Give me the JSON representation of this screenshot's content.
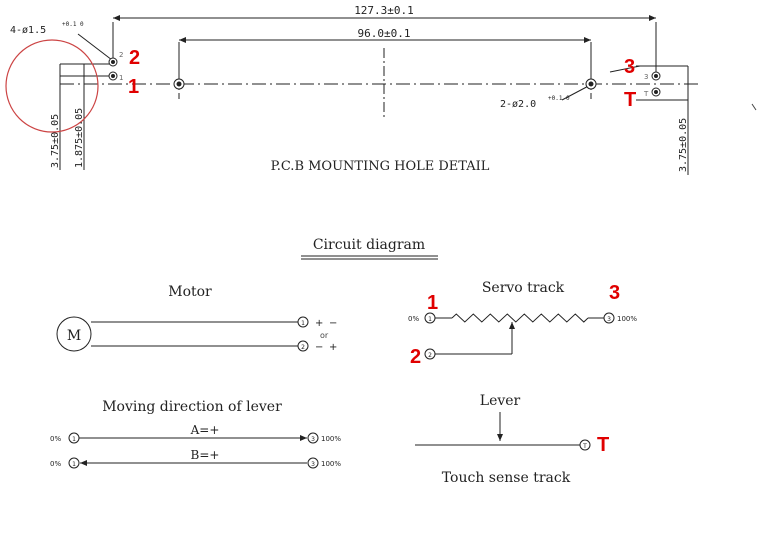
{
  "mounting": {
    "dim_overall": "127.3±0.1",
    "dim_inner": "96.0±0.1",
    "hole_small": "4-ø1.5",
    "hole_small_tol": "+0.1 0",
    "hole_large": "2-ø2.0",
    "hole_large_tol": "+0.1 0",
    "dim_left_a": "3.75±0.05",
    "dim_left_b": "1.875±0.05",
    "dim_right": "3.75±0.05",
    "title": "P.C.B MOUNTING HOLE DETAIL",
    "pin_small_left_top": "2",
    "pin_small_left_bot": "1",
    "pin_small_right_top": "3",
    "pin_small_right_bot": "T"
  },
  "annotations": {
    "left_top": "2",
    "left_bottom": "1",
    "right_top": "3",
    "right_bottom": "T",
    "servo_left": "1",
    "servo_right": "3",
    "servo_wiper": "2",
    "touch_end": "T",
    "color": "#e00000"
  },
  "circuit": {
    "title": "Circuit diagram",
    "motor_label": "Motor",
    "motor_symbol": "M",
    "plus": "+",
    "minus": "−",
    "or": "or",
    "servo_label": "Servo track",
    "pct0": "0%",
    "pct100": "100%",
    "lever_dir_label": "Moving direction of lever",
    "dir_a": "A=+",
    "dir_b": "B=+",
    "lever_label": "Lever",
    "touch_label": "Touch sense track"
  },
  "pins": {
    "motor_top": "1",
    "motor_bottom": "2",
    "servo_left": "1",
    "servo_right": "3",
    "servo_wiper": "2",
    "dir_a_left": "1",
    "dir_a_right": "3",
    "dir_b_left": "1",
    "dir_b_right": "3",
    "touch": "T"
  }
}
